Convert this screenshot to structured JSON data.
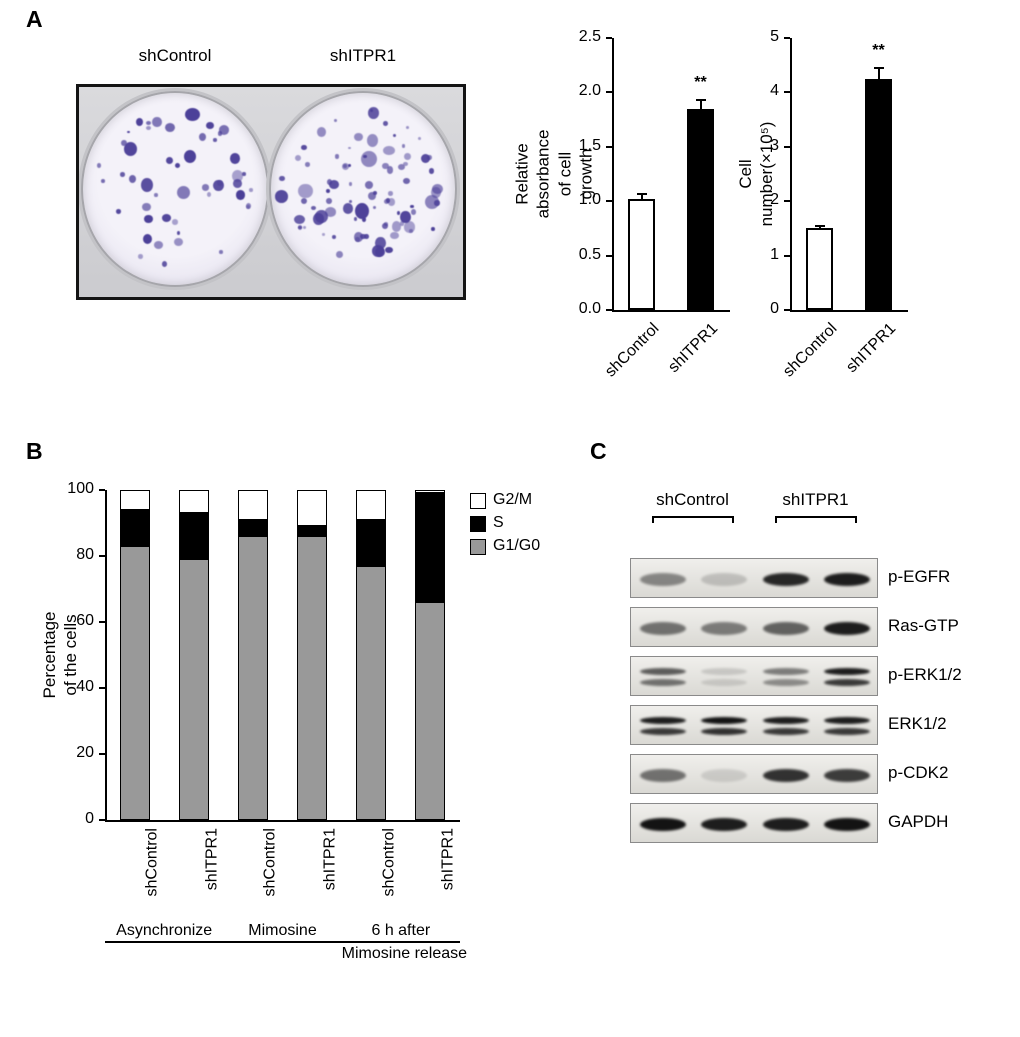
{
  "figure": {
    "panel_a_label": "A",
    "panel_b_label": "B",
    "panel_c_label": "C"
  },
  "colony_assay": {
    "left_label": "shControl",
    "right_label": "shITPR1",
    "colony_color": "#4b3f98",
    "colony_counts": {
      "shControl": 48,
      "shITPR1": 88
    }
  },
  "chart_data": [
    {
      "id": "growth_absorbance",
      "type": "bar",
      "title": "",
      "ylabel": "Relative absorbance\nof cell growth",
      "categories": [
        "shControl",
        "shITPR1"
      ],
      "values": [
        1.02,
        1.85
      ],
      "errors": [
        0.05,
        0.08
      ],
      "bar_colors": [
        "#ffffff",
        "#000000"
      ],
      "ylim": [
        0,
        2.5
      ],
      "yticks": [
        0,
        0.5,
        1,
        1.5,
        2,
        2.5
      ],
      "ytick_labels": [
        "0.0",
        "0.5",
        "1.0",
        "1.5",
        "2.0",
        "2.5"
      ],
      "annotations": [
        {
          "bar": 1,
          "text": "**"
        }
      ]
    },
    {
      "id": "cell_number",
      "type": "bar",
      "title": "",
      "ylabel": "Cell number(×10⁵)",
      "categories": [
        "shControl",
        "shITPR1"
      ],
      "values": [
        1.5,
        4.25
      ],
      "errors": [
        0.05,
        0.2
      ],
      "bar_colors": [
        "#ffffff",
        "#000000"
      ],
      "ylim": [
        0,
        5
      ],
      "yticks": [
        0,
        1,
        2,
        3,
        4,
        5
      ],
      "ytick_labels": [
        "0",
        "1",
        "2",
        "3",
        "4",
        "5"
      ],
      "annotations": [
        {
          "bar": 1,
          "text": "**"
        }
      ]
    },
    {
      "id": "cell_cycle",
      "type": "stacked_bar",
      "title": "",
      "ylabel": "Percentage of the cells",
      "categories": [
        "shControl",
        "shITPR1",
        "shControl",
        "shITPR1",
        "shControl",
        "shITPR1"
      ],
      "series": [
        {
          "name": "G1/G0",
          "color": "#999999",
          "values": [
            83,
            79,
            86,
            86,
            77,
            66
          ]
        },
        {
          "name": "S",
          "color": "#000000",
          "values": [
            11,
            14,
            5,
            3,
            14,
            33
          ]
        },
        {
          "name": "G2/M",
          "color": "#ffffff",
          "values": [
            6,
            7,
            9,
            11,
            9,
            1
          ]
        }
      ],
      "legend": [
        {
          "label": "G2/M",
          "color": "#ffffff"
        },
        {
          "label": "S",
          "color": "#000000"
        },
        {
          "label": "G1/G0",
          "color": "#999999"
        }
      ],
      "groups": [
        {
          "label": "Asynchronize",
          "label2": "",
          "bars": [
            0,
            1
          ]
        },
        {
          "label": "Mimosine",
          "label2": "",
          "bars": [
            2,
            3
          ]
        },
        {
          "label": "6 h after",
          "label2": "Mimosine release",
          "bars": [
            4,
            5
          ]
        }
      ],
      "ylim": [
        0,
        100
      ],
      "yticks": [
        0,
        20,
        40,
        60,
        80,
        100
      ],
      "ytick_labels": [
        "0",
        "20",
        "40",
        "60",
        "80",
        "100"
      ],
      "legend_position": "right",
      "grid": false
    }
  ],
  "western_blot": {
    "group_labels": [
      "shControl",
      "shITPR1"
    ],
    "rows": [
      {
        "label": "p-EGFR",
        "doublet": false,
        "intensities": [
          0.45,
          0.18,
          0.9,
          0.95
        ]
      },
      {
        "label": "Ras-GTP",
        "doublet": false,
        "intensities": [
          0.55,
          0.5,
          0.62,
          0.95
        ]
      },
      {
        "label": "p-ERK1/2",
        "doublet": true,
        "intensities": [
          0.65,
          0.15,
          0.5,
          0.95
        ]
      },
      {
        "label": "ERK1/2",
        "doublet": true,
        "intensities": [
          0.95,
          1.0,
          0.95,
          0.95
        ]
      },
      {
        "label": "p-CDK2",
        "doublet": false,
        "intensities": [
          0.55,
          0.12,
          0.85,
          0.8
        ]
      },
      {
        "label": "GAPDH",
        "doublet": false,
        "intensities": [
          1.0,
          0.95,
          0.95,
          1.0
        ]
      }
    ]
  }
}
